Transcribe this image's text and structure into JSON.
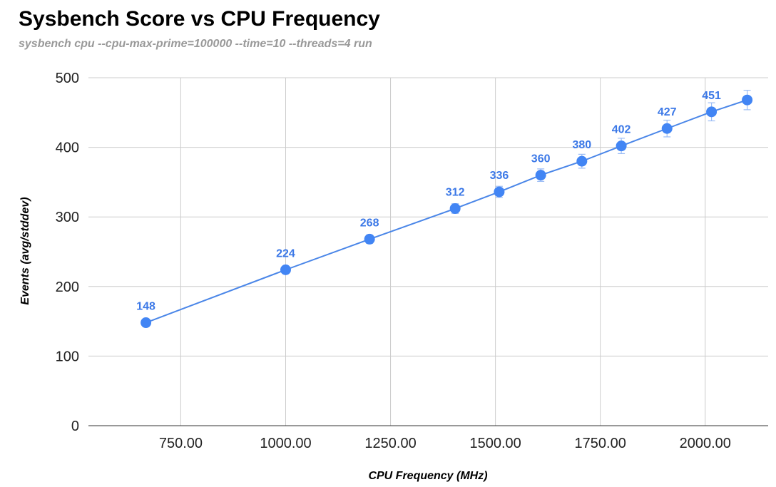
{
  "chart_data": {
    "type": "scatter",
    "title": "Sysbench Score vs CPU Frequency",
    "subtitle": "sysbench cpu --cpu-max-prime=100000 --time=10 --threads=4 run",
    "xlabel": "CPU Frequency (MHz)",
    "ylabel": "Events (avg/stddev)",
    "xlim": [
      530,
      2150
    ],
    "ylim": [
      0,
      500
    ],
    "xticks": [
      750,
      1000,
      1250,
      1500,
      1750,
      2000
    ],
    "xtick_labels": [
      "750.00",
      "1000.00",
      "1250.00",
      "1500.00",
      "1750.00",
      "2000.00"
    ],
    "yticks": [
      0,
      100,
      200,
      300,
      400,
      500
    ],
    "ytick_labels": [
      "0",
      "100",
      "200",
      "300",
      "400",
      "500"
    ],
    "grid": true,
    "legend": "none",
    "colors": {
      "series": "#4285f4",
      "labels": "#3b78e7"
    },
    "series": [
      {
        "x": [
          667,
          1000,
          1200,
          1404,
          1509,
          1608,
          1706,
          1800,
          1909,
          2015,
          2100
        ],
        "y": [
          148,
          224,
          268,
          312,
          336,
          360,
          380,
          402,
          427,
          451,
          468
        ],
        "error": [
          2,
          4,
          6,
          7,
          8,
          9,
          10,
          11,
          12,
          13,
          14
        ],
        "data_labels": [
          "148",
          "224",
          "268",
          "312",
          "336",
          "360",
          "380",
          "402",
          "427",
          "451",
          ""
        ]
      }
    ]
  }
}
